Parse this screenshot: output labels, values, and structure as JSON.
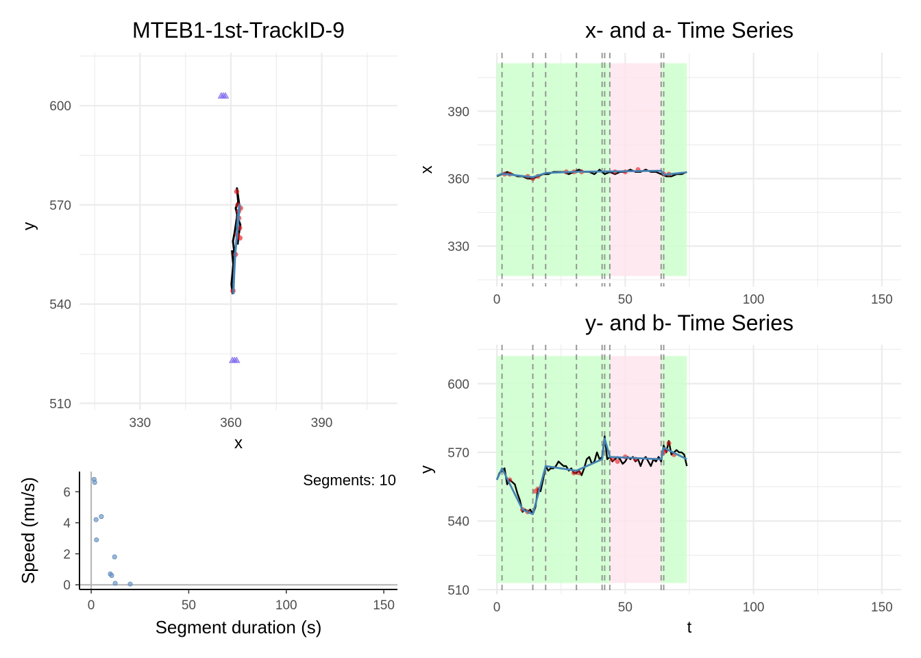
{
  "colors": {
    "grid": "#ebebeb",
    "tick_text": "#4d4d4d",
    "raw_track": "#000000",
    "fitted_track": "#4682b4",
    "change_points": "#e41a1c",
    "endpoints": "#7b68ee",
    "bg_green": "#ccffcc",
    "bg_pink": "#ffe4ec",
    "vlines": "#808080",
    "speed_points": "#6f99c8"
  },
  "chart_data": [
    {
      "id": "xy",
      "type": "line",
      "title": "MTEB1-1st-TrackID-9",
      "xlabel": "x",
      "ylabel": "y",
      "xlim": [
        310,
        415
      ],
      "ylim": [
        508,
        616
      ],
      "xticks": [
        330,
        360,
        390
      ],
      "yticks": [
        510,
        540,
        570,
        600
      ],
      "grid": true,
      "series": [
        {
          "role": "raw",
          "x": [
            360.6,
            360.2,
            360.5,
            360.9,
            360.4,
            360.8,
            361.2,
            360.7,
            361.3,
            361.8,
            361.5,
            362.1,
            361.6,
            362.4,
            362.0,
            362.9,
            362.3,
            363.1,
            362.6,
            362.2
          ],
          "y": [
            543,
            546,
            549,
            553,
            556,
            552,
            555,
            559,
            562,
            565,
            563,
            567,
            569,
            571,
            575,
            569,
            566,
            564,
            561,
            558
          ]
        },
        {
          "role": "fitted",
          "x": [
            360.8,
            361.0,
            361.4,
            362.0,
            362.5,
            362.9,
            362.4,
            362.0
          ],
          "y": [
            543,
            548,
            555,
            561,
            566,
            570,
            567,
            563
          ]
        },
        {
          "role": "change-points",
          "x": [
            360.7,
            361.5,
            362.1,
            362.6,
            363.2,
            362.9,
            362.3,
            361.9,
            363.0,
            362.5
          ],
          "y": [
            544,
            555,
            561,
            566,
            569,
            563,
            570,
            574,
            560,
            568
          ]
        },
        {
          "role": "endpoints",
          "x": [
            356.8,
            357.5,
            358.2,
            360.5,
            361.2,
            361.9
          ],
          "y": [
            603,
            603,
            603,
            523,
            523,
            523
          ]
        }
      ]
    },
    {
      "id": "speed",
      "type": "scatter",
      "annotation": "Segments: 10",
      "xlabel": "Segment duration (s)",
      "ylabel": "Speed (mu/s)",
      "xlim": [
        -6,
        157
      ],
      "ylim": [
        -0.3,
        7.3
      ],
      "xticks": [
        0,
        50,
        100,
        150
      ],
      "yticks": [
        0,
        2,
        4,
        6
      ],
      "x": [
        1.5,
        1.8,
        2.5,
        2.7,
        5.2,
        9.8,
        10.5,
        12.0,
        12.3,
        20.0
      ],
      "y": [
        6.8,
        6.6,
        4.2,
        2.9,
        4.4,
        0.7,
        0.6,
        1.8,
        0.1,
        0.05
      ]
    },
    {
      "id": "xt",
      "type": "line",
      "title": "x- and a- Time Series",
      "xlabel": "",
      "ylabel": "x",
      "xlim": [
        -7.5,
        157.5
      ],
      "ylim": [
        312,
        416
      ],
      "xticks": [
        0,
        50,
        100,
        150
      ],
      "yticks": [
        330,
        360,
        390
      ],
      "grid": true,
      "bands": [
        {
          "start": 0,
          "end": 44,
          "color": "green"
        },
        {
          "start": 44,
          "end": 64,
          "color": "pink"
        },
        {
          "start": 64,
          "end": 74,
          "color": "green"
        }
      ],
      "vlines": [
        2,
        14,
        19,
        31,
        41,
        42,
        44,
        64,
        65
      ],
      "series": [
        {
          "role": "raw",
          "x": [
            0,
            2,
            4,
            6,
            8,
            10,
            12,
            14,
            16,
            18,
            20,
            22,
            24,
            26,
            28,
            30,
            32,
            34,
            36,
            38,
            40,
            42,
            44,
            46,
            48,
            50,
            52,
            54,
            56,
            58,
            60,
            62,
            64,
            66,
            68,
            70,
            72,
            74
          ],
          "y": [
            361,
            362,
            363,
            362,
            361,
            361,
            360,
            360,
            361,
            362,
            362,
            363,
            363,
            363,
            362,
            363,
            364,
            363,
            363,
            362,
            364,
            362,
            363,
            362,
            363,
            363,
            364,
            363,
            363,
            364,
            363,
            363,
            362,
            361,
            361,
            362,
            362,
            363
          ]
        },
        {
          "role": "fitted",
          "x": [
            0,
            2,
            14,
            19,
            31,
            44,
            64,
            65,
            74
          ],
          "y": [
            361.3,
            362.2,
            360.6,
            362.5,
            363.1,
            363.2,
            363.5,
            361.7,
            362.8
          ]
        },
        {
          "role": "change-points",
          "x": [
            3,
            5,
            12,
            14,
            16,
            27,
            30,
            33,
            46,
            50,
            55,
            65,
            67
          ],
          "y": [
            362,
            362,
            361,
            360,
            361,
            363,
            363,
            363,
            363,
            363,
            364,
            362,
            362
          ]
        }
      ]
    },
    {
      "id": "yt",
      "type": "line",
      "title": "y- and b- Time Series",
      "xlabel": "t",
      "ylabel": "y",
      "xlim": [
        -7.5,
        157.5
      ],
      "ylim": [
        508,
        617
      ],
      "xticks": [
        0,
        50,
        100,
        150
      ],
      "yticks": [
        510,
        540,
        570,
        600
      ],
      "grid": true,
      "bands": [
        {
          "start": 0,
          "end": 44,
          "color": "green"
        },
        {
          "start": 44,
          "end": 64,
          "color": "pink"
        },
        {
          "start": 64,
          "end": 74,
          "color": "green"
        }
      ],
      "vlines": [
        2,
        14,
        19,
        31,
        41,
        42,
        44,
        64,
        65
      ],
      "series": [
        {
          "role": "raw",
          "x": [
            0,
            1,
            2,
            3,
            4,
            5,
            6,
            7,
            8,
            9,
            10,
            11,
            12,
            13,
            14,
            15,
            16,
            17,
            18,
            19,
            20,
            21,
            22,
            23,
            24,
            25,
            26,
            27,
            28,
            29,
            30,
            31,
            32,
            33,
            34,
            35,
            36,
            37,
            38,
            39,
            40,
            41,
            42,
            43,
            44,
            45,
            46,
            47,
            48,
            49,
            50,
            51,
            52,
            53,
            54,
            55,
            56,
            57,
            58,
            59,
            60,
            61,
            62,
            63,
            64,
            65,
            66,
            67,
            68,
            69,
            70,
            71,
            72,
            73,
            74
          ],
          "y": [
            558,
            561,
            562,
            563,
            556,
            558,
            557,
            556,
            552,
            549,
            544,
            545,
            544,
            545,
            543,
            546,
            554,
            553,
            558,
            564,
            562,
            563,
            563,
            564,
            566,
            565,
            564,
            564,
            562,
            563,
            561,
            561,
            562,
            560,
            563,
            567,
            568,
            565,
            566,
            570,
            567,
            568,
            577,
            567,
            568,
            566,
            567,
            568,
            567,
            565,
            566,
            568,
            567,
            568,
            566,
            567,
            564,
            567,
            568,
            566,
            564,
            567,
            566,
            568,
            566,
            573,
            570,
            575,
            569,
            570,
            571,
            570,
            570,
            569,
            564
          ]
        },
        {
          "role": "fitted",
          "x": [
            0,
            2,
            10,
            14,
            19,
            31,
            41,
            42,
            44,
            64,
            65,
            74
          ],
          "y": [
            558,
            563,
            545,
            543,
            564,
            562,
            567,
            576,
            568,
            567,
            572,
            567
          ]
        },
        {
          "role": "change-points",
          "x": [
            5,
            10,
            12,
            15,
            16,
            30,
            32,
            45,
            47,
            50,
            54,
            65,
            66,
            67,
            69
          ],
          "y": [
            558,
            545,
            544,
            553,
            554,
            561,
            561,
            567,
            566,
            568,
            567,
            570,
            571,
            574,
            569
          ]
        }
      ]
    }
  ]
}
